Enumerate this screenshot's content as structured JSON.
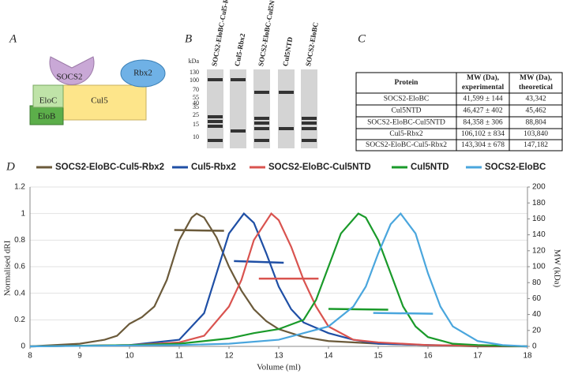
{
  "panel_a": {
    "letter": "A",
    "labels": {
      "socs2": "SOCS2",
      "eloc": "EloC",
      "elob": "EloB",
      "cul5": "Cul5",
      "rbx2": "Rbx2"
    }
  },
  "panel_b": {
    "letter": "B",
    "unit": "kDa",
    "markers": [
      130,
      100,
      70,
      55,
      40,
      35,
      25,
      15,
      10
    ],
    "lanes": [
      "SOCS2-EloBC-Cul5-Rbx2",
      "Cul5-Rbx2",
      "SOCS2-EloBC-Cul5NTD",
      "Cul5NTD",
      "SOCS2-EloBC"
    ]
  },
  "panel_c": {
    "letter": "C",
    "table": {
      "header": [
        "Protein",
        "MW (Da), experimental",
        "MW (Da), theoretical"
      ],
      "rows": [
        [
          "SOCS2-EloBC",
          "41,599 ± 144",
          "43,342"
        ],
        [
          "Cul5NTD",
          "46,427 ± 402",
          "45,462"
        ],
        [
          "SOCS2-EloBC-Cul5NTD",
          "84,358 ± 306",
          "88,804"
        ],
        [
          "Cul5-Rbx2",
          "106,102 ± 834",
          "103,840"
        ],
        [
          "SOCS2-EloBC-Cul5-Rbx2",
          "143,304 ± 678",
          "147,182"
        ]
      ]
    }
  },
  "chart_data": {
    "type": "line",
    "panel_letter": "D",
    "x_label": "Volume (ml)",
    "y_label": "Normalised dRI",
    "y2_label": "MW (kDa)",
    "xlim": [
      8,
      18
    ],
    "xticks": [
      8,
      9,
      10,
      11,
      12,
      13,
      14,
      15,
      16,
      17,
      18
    ],
    "ylim": [
      0,
      1.2
    ],
    "yticks": [
      0,
      0.2,
      0.4,
      0.6,
      0.8,
      1,
      1.2
    ],
    "y2lim": [
      0,
      200
    ],
    "y2ticks": [
      0,
      20,
      40,
      60,
      80,
      100,
      120,
      140,
      160,
      180,
      200
    ],
    "series": [
      {
        "name": "SOCS2-EloBC-Cul5-Rbx2",
        "color": "#6b5a3a",
        "x": [
          8,
          9,
          9.5,
          9.75,
          10,
          10.25,
          10.5,
          10.75,
          11,
          11.25,
          11.35,
          11.5,
          11.75,
          12,
          12.25,
          12.5,
          12.75,
          13,
          13.5,
          14,
          15,
          16,
          17,
          18
        ],
        "values": [
          0,
          0.02,
          0.05,
          0.08,
          0.17,
          0.22,
          0.3,
          0.5,
          0.8,
          0.97,
          1,
          0.97,
          0.82,
          0.6,
          0.42,
          0.28,
          0.19,
          0.13,
          0.07,
          0.04,
          0.02,
          0.01,
          0,
          0
        ],
        "mw_x": [
          10.9,
          11.9
        ],
        "mw_values": [
          146,
          145
        ]
      },
      {
        "name": "Cul5-Rbx2",
        "color": "#1f4fa5",
        "x": [
          8,
          10,
          11,
          11.5,
          11.75,
          12,
          12.3,
          12.5,
          12.75,
          13,
          13.25,
          13.5,
          14,
          14.5,
          15,
          16,
          18
        ],
        "values": [
          0,
          0.01,
          0.05,
          0.25,
          0.55,
          0.85,
          1,
          0.93,
          0.7,
          0.45,
          0.28,
          0.18,
          0.1,
          0.05,
          0.02,
          0.01,
          0
        ],
        "mw_x": [
          12.1,
          13.1
        ],
        "mw_values": [
          107,
          105
        ]
      },
      {
        "name": "SOCS2-EloBC-Cul5NTD",
        "color": "#d9534f",
        "x": [
          8,
          10,
          11,
          11.5,
          12,
          12.25,
          12.5,
          12.85,
          13,
          13.25,
          13.5,
          13.75,
          14,
          14.5,
          15,
          16,
          18
        ],
        "values": [
          0,
          0.01,
          0.03,
          0.08,
          0.3,
          0.5,
          0.8,
          1,
          0.95,
          0.75,
          0.5,
          0.3,
          0.15,
          0.05,
          0.03,
          0.01,
          0
        ],
        "mw_x": [
          12.6,
          13.8
        ],
        "mw_values": [
          85,
          85
        ]
      },
      {
        "name": "Cul5NTD",
        "color": "#1a9a2a",
        "x": [
          8,
          10,
          11,
          12,
          12.5,
          13,
          13.5,
          13.75,
          14,
          14.25,
          14.6,
          14.75,
          15,
          15.25,
          15.5,
          15.75,
          16,
          16.5,
          17,
          18
        ],
        "values": [
          0,
          0.01,
          0.02,
          0.06,
          0.1,
          0.13,
          0.2,
          0.35,
          0.6,
          0.85,
          1,
          0.97,
          0.8,
          0.55,
          0.3,
          0.15,
          0.07,
          0.02,
          0.01,
          0
        ],
        "mw_x": [
          14,
          15.2
        ],
        "mw_values": [
          47,
          46
        ]
      },
      {
        "name": "SOCS2-EloBC",
        "color": "#4aa6dd",
        "x": [
          8,
          11,
          12,
          13,
          14,
          14.5,
          14.75,
          15,
          15.25,
          15.45,
          15.75,
          16,
          16.25,
          16.5,
          17,
          17.5,
          18
        ],
        "values": [
          0,
          0.01,
          0.02,
          0.05,
          0.15,
          0.3,
          0.45,
          0.7,
          0.92,
          1,
          0.85,
          0.55,
          0.3,
          0.15,
          0.04,
          0.01,
          0
        ],
        "mw_x": [
          14.9,
          16.1
        ],
        "mw_values": [
          42,
          41
        ]
      }
    ]
  }
}
